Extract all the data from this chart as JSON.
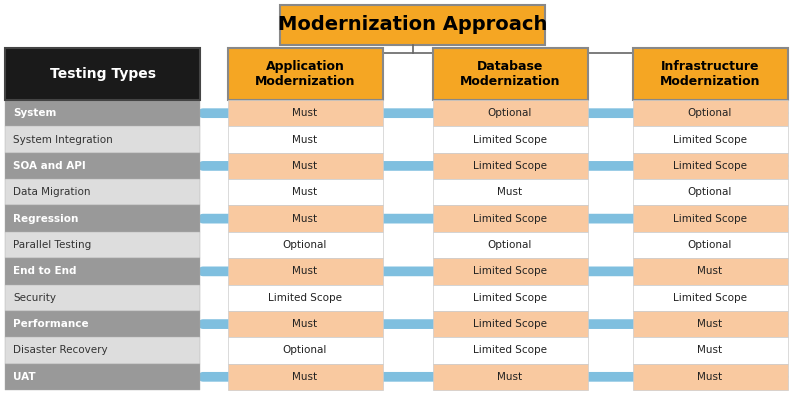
{
  "title": "Modernization Approach",
  "columns": [
    "Application\nModernization",
    "Database\nModernization",
    "Infrastructure\nModernization"
  ],
  "row_labels": [
    "System",
    "System Integration",
    "SOA and API",
    "Data Migration",
    "Regression",
    "Parallel Testing",
    "End to End",
    "Security",
    "Performance",
    "Disaster Recovery",
    "UAT"
  ],
  "table_data": [
    [
      "Must",
      "Optional",
      "Optional"
    ],
    [
      "Must",
      "Limited Scope",
      "Limited Scope"
    ],
    [
      "Must",
      "Limited Scope",
      "Limited Scope"
    ],
    [
      "Must",
      "Must",
      "Optional"
    ],
    [
      "Must",
      "Limited Scope",
      "Limited Scope"
    ],
    [
      "Optional",
      "Optional",
      "Optional"
    ],
    [
      "Must",
      "Limited Scope",
      "Must"
    ],
    [
      "Limited Scope",
      "Limited Scope",
      "Limited Scope"
    ],
    [
      "Must",
      "Limited Scope",
      "Must"
    ],
    [
      "Optional",
      "Limited Scope",
      "Must"
    ],
    [
      "Must",
      "Must",
      "Must"
    ]
  ],
  "highlighted_rows": [
    0,
    2,
    4,
    6,
    8,
    10
  ],
  "col_header_color": "#F5A623",
  "col_header_text_color": "#000000",
  "title_bg_color": "#F5A623",
  "title_text_color": "#000000",
  "cell_highlight_color": "#F9C9A0",
  "cell_normal_color": "#FFFFFF",
  "arrow_color": "#7FBFDF",
  "header_label": "Testing Types",
  "header_bg": "#1A1A1A",
  "header_text_color": "#FFFFFF",
  "dark_row_bg": "#999999",
  "dark_row_text": "#FFFFFF",
  "light_row_bg": "#DDDDDD",
  "light_row_text": "#333333",
  "connector_color": "#666666",
  "border_color": "#888888"
}
